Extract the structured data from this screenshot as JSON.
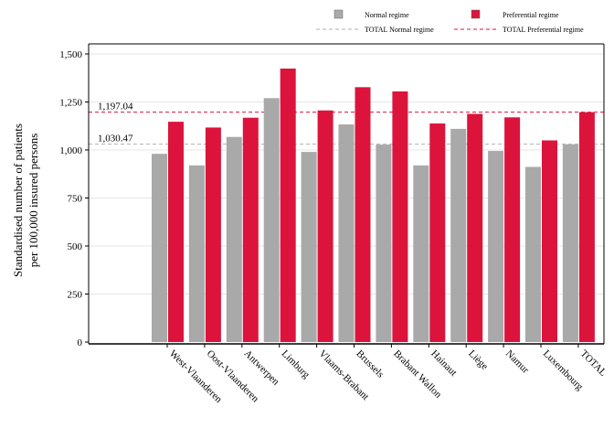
{
  "chart_data": {
    "type": "bar",
    "ylabel_lines": [
      "Standardised number of patients",
      "per 100,000 insured persons"
    ],
    "categories": [
      "West-Vlaanderen",
      "Oost-Vlaanderen",
      "Antwerpen",
      "Limburg",
      "Vlaams-Brabant",
      "Brussels",
      "Brabant Wallon",
      "Hainaut",
      "Liège",
      "Namur",
      "Luxembourg",
      "TOTAL"
    ],
    "series": [
      {
        "name": "Normal regime",
        "color": "#a9a9a9",
        "values": [
          980,
          920,
          1068,
          1270,
          990,
          1133,
          1028,
          920,
          1110,
          995,
          912,
          1030
        ]
      },
      {
        "name": "Preferential regime",
        "color": "#dc143c",
        "values": [
          1147,
          1117,
          1168,
          1424,
          1206,
          1327,
          1305,
          1138,
          1188,
          1170,
          1050,
          1197
        ]
      }
    ],
    "reference_lines": [
      {
        "name": "TOTAL Normal regime",
        "value": 1030.47,
        "label": "1,030.47",
        "color": "#b0b0b0"
      },
      {
        "name": "TOTAL Preferential regime",
        "value": 1197.04,
        "label": "1,197.04",
        "color": "#dc143c"
      }
    ],
    "yticks": [
      0,
      250,
      500,
      750,
      1000,
      1250,
      1500
    ],
    "ytick_labels": [
      "0",
      "250",
      "500",
      "750",
      "1,000",
      "1,250",
      "1,500"
    ],
    "ylim": [
      0,
      1500
    ],
    "grid": true,
    "legend_position": "top-right"
  }
}
